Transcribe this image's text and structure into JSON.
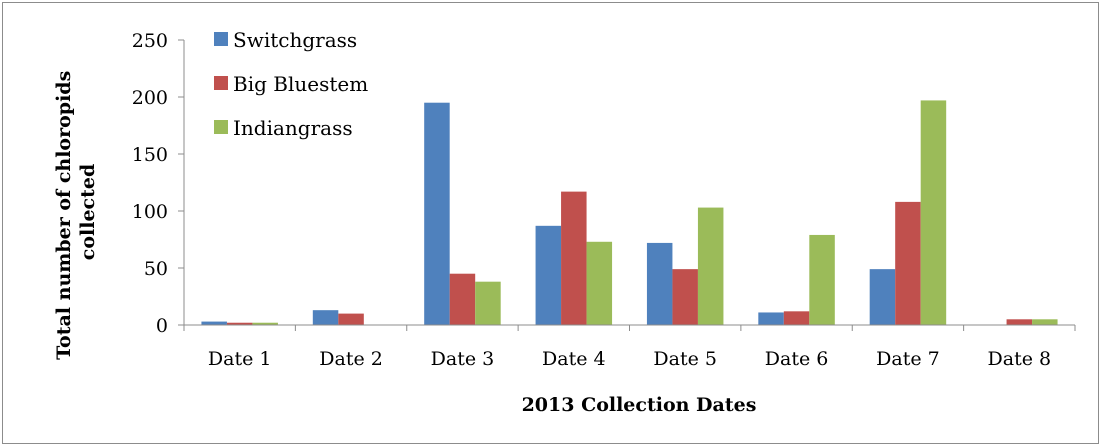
{
  "chart_data": {
    "type": "bar",
    "categories": [
      "Date 1",
      "Date 2",
      "Date 3",
      "Date 4",
      "Date 5",
      "Date 6",
      "Date 7",
      "Date 8"
    ],
    "series": [
      {
        "name": "Switchgrass",
        "color": "#4f81bd",
        "values": [
          3,
          13,
          195,
          87,
          72,
          11,
          49,
          0
        ]
      },
      {
        "name": "Big Bluestem",
        "color": "#c0504d",
        "values": [
          2,
          10,
          45,
          117,
          49,
          12,
          108,
          5
        ]
      },
      {
        "name": "Indiangrass",
        "color": "#9bbb59",
        "values": [
          2,
          0,
          38,
          73,
          103,
          79,
          197,
          5
        ]
      }
    ],
    "title": "",
    "xlabel": "2013 Collection Dates",
    "ylabel_line1": "Total number of chloropids",
    "ylabel_line2": "collected",
    "ylim": [
      0,
      250
    ],
    "yticks": [
      "0",
      "50",
      "100",
      "150",
      "200",
      "250"
    ],
    "legend_position": "top-left",
    "grid": false
  }
}
